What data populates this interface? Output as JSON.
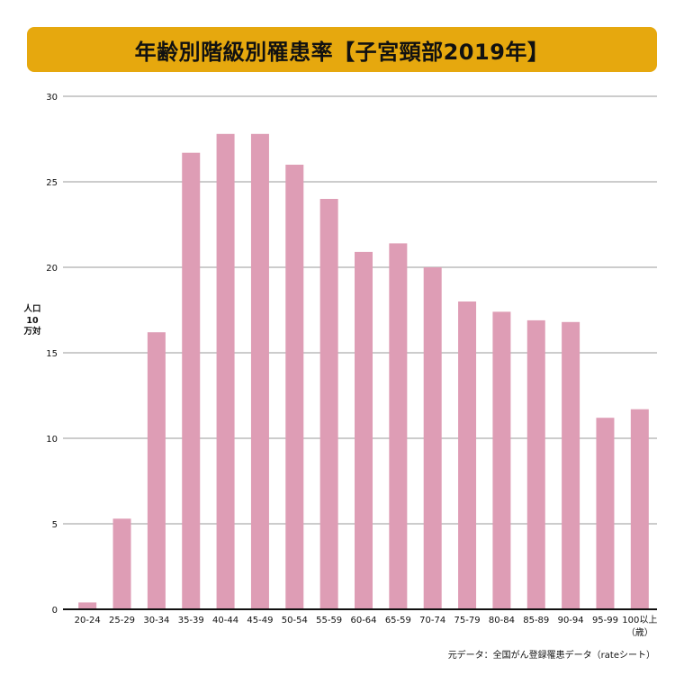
{
  "title": "年齢別階級別罹患率【子宮頸部2019年】",
  "source": "元データ：全国がん登録罹患データ（rateシート）",
  "colors": {
    "bar": "#de9db5",
    "title_bg": "#e6a80e",
    "grid": "#999999"
  },
  "chart_data": {
    "type": "bar",
    "title": "年齢別階級別罹患率【子宮頸部2019年】",
    "ylabel": "人口10万対",
    "xlabel": "",
    "ylim": [
      0,
      30
    ],
    "yticks": [
      0,
      5,
      10,
      15,
      20,
      25,
      30
    ],
    "grid": true,
    "categories": [
      "20-24",
      "25-29",
      "30-34",
      "35-39",
      "40-44",
      "45-49",
      "50-54",
      "55-59",
      "60-64",
      "65-59",
      "70-74",
      "75-79",
      "80-84",
      "85-89",
      "90-94",
      "95-99",
      "100以上"
    ],
    "last_category_suffix": "（歳）",
    "values": [
      0.4,
      5.3,
      16.2,
      26.7,
      27.8,
      27.8,
      26.0,
      24.0,
      20.9,
      21.4,
      20.0,
      18.0,
      17.4,
      16.9,
      16.8,
      11.2,
      11.7
    ]
  }
}
